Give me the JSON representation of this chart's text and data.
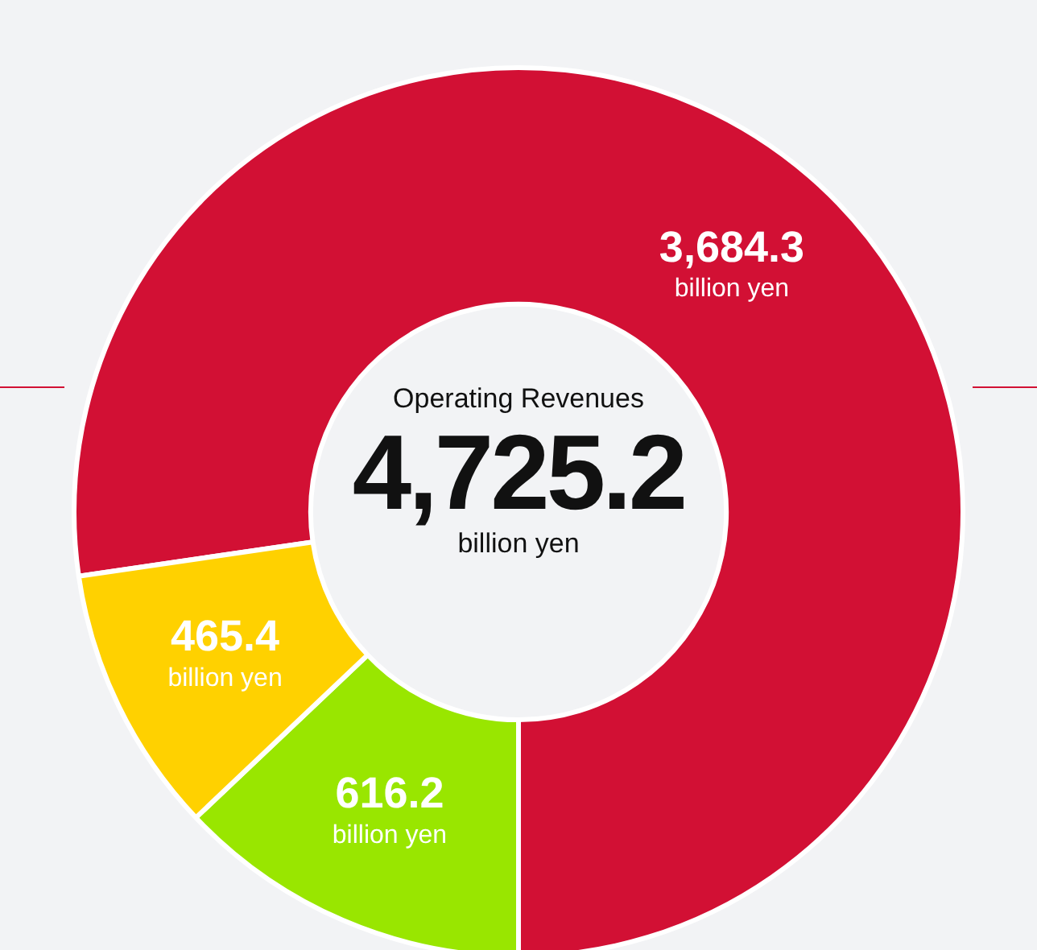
{
  "chart_data": {
    "type": "donut",
    "title": "Operating Revenues",
    "categories": [
      null,
      null,
      null
    ],
    "values": [
      3684.3,
      616.2,
      465.4
    ],
    "colors": [
      "#d21034",
      "#99e600",
      "#ffd100"
    ],
    "value_labels": [
      "3,684.3 billion yen",
      "616.2 billion yen",
      "465.4 billion yen"
    ],
    "annotations": [
      "4,725.2",
      "billion yen"
    ],
    "legend": false
  }
}
